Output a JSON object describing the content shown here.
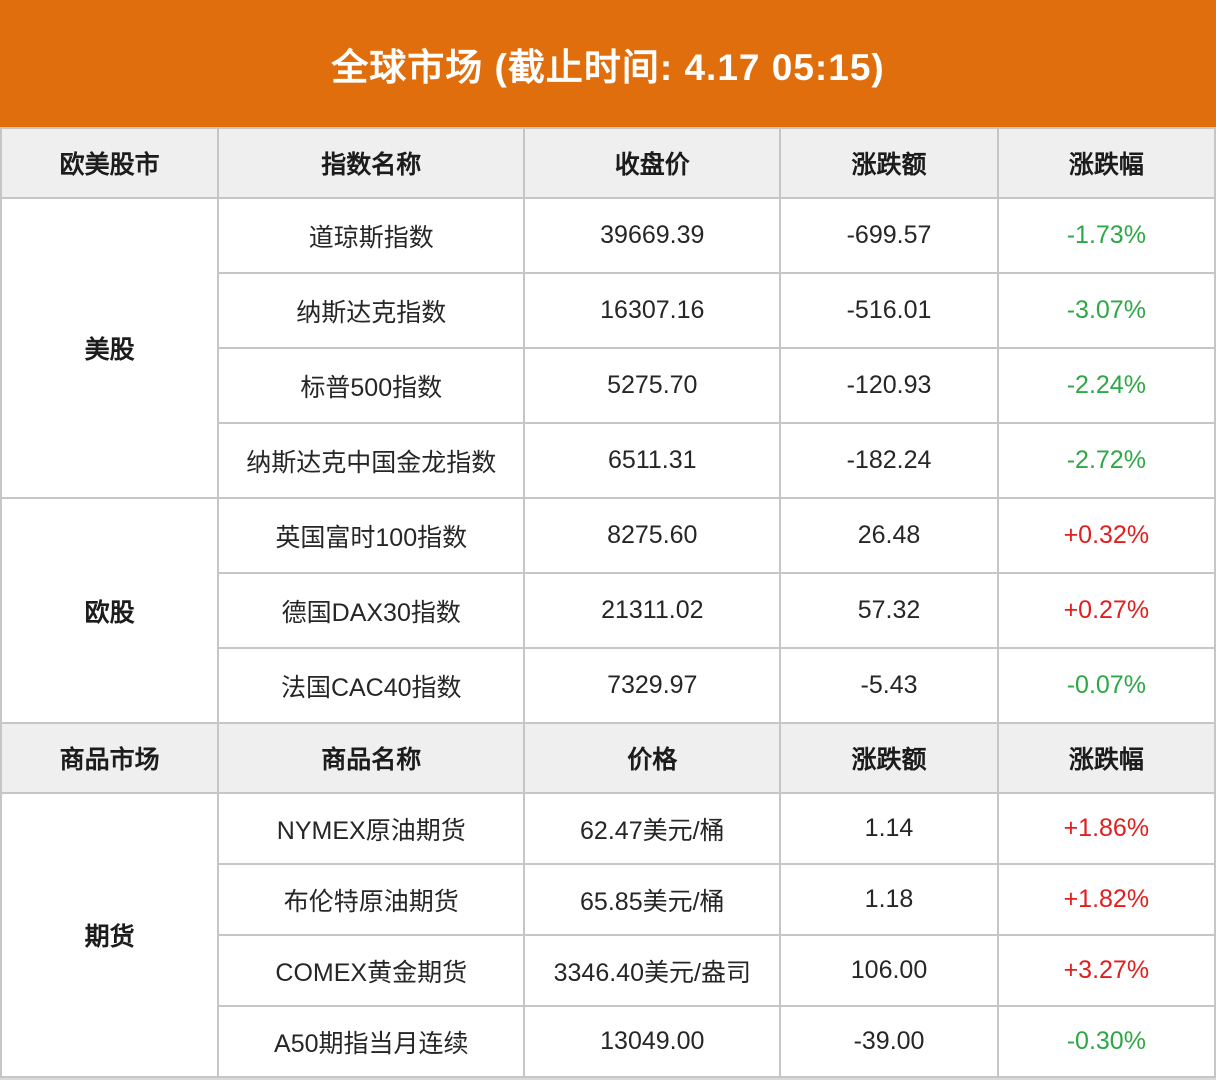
{
  "banner": {
    "title": "全球市场 (截止时间: 4.17 05:15)"
  },
  "theme": {
    "banner_bg": "#E06E0D",
    "up_red": "#E11E1E",
    "down_green": "#2DA846",
    "header_bg": "#EFEFEF",
    "border": "#C6C6C6",
    "footer_strip": "#D9D9D9"
  },
  "chart_data": {
    "type": "table",
    "title": "全球市场 (截止时间: 4.17 05:15)",
    "note_color_convention": "red = up, green = down",
    "sections": [
      {
        "category_header": "欧美股市",
        "columns": [
          "指数名称",
          "收盘价",
          "涨跌额",
          "涨跌幅"
        ],
        "groups": [
          {
            "label": "美股",
            "rows": [
              {
                "name": "道琼斯指数",
                "price": "39669.39",
                "change": "-699.57",
                "pct": "-1.73%",
                "dir": "down"
              },
              {
                "name": "纳斯达克指数",
                "price": "16307.16",
                "change": "-516.01",
                "pct": "-3.07%",
                "dir": "down"
              },
              {
                "name": "标普500指数",
                "price": "5275.70",
                "change": "-120.93",
                "pct": "-2.24%",
                "dir": "down"
              },
              {
                "name": "纳斯达克中国金龙指数",
                "price": "6511.31",
                "change": "-182.24",
                "pct": "-2.72%",
                "dir": "down"
              }
            ]
          },
          {
            "label": "欧股",
            "rows": [
              {
                "name": "英国富时100指数",
                "price": "8275.60",
                "change": "26.48",
                "pct": "+0.32%",
                "dir": "up"
              },
              {
                "name": "德国DAX30指数",
                "price": "21311.02",
                "change": "57.32",
                "pct": "+0.27%",
                "dir": "up"
              },
              {
                "name": "法国CAC40指数",
                "price": "7329.97",
                "change": "-5.43",
                "pct": "-0.07%",
                "dir": "down"
              }
            ]
          }
        ]
      },
      {
        "category_header": "商品市场",
        "columns": [
          "商品名称",
          "价格",
          "涨跌额",
          "涨跌幅"
        ],
        "groups": [
          {
            "label": "期货",
            "rows": [
              {
                "name": "NYMEX原油期货",
                "price": "62.47美元/桶",
                "change": "1.14",
                "pct": "+1.86%",
                "dir": "up"
              },
              {
                "name": "布伦特原油期货",
                "price": "65.85美元/桶",
                "change": "1.18",
                "pct": "+1.82%",
                "dir": "up"
              },
              {
                "name": "COMEX黄金期货",
                "price": "3346.40美元/盎司",
                "change": "106.00",
                "pct": "+3.27%",
                "dir": "up"
              },
              {
                "name": "A50期指当月连续",
                "price": "13049.00",
                "change": "-39.00",
                "pct": "-0.30%",
                "dir": "down"
              }
            ]
          }
        ]
      }
    ]
  }
}
